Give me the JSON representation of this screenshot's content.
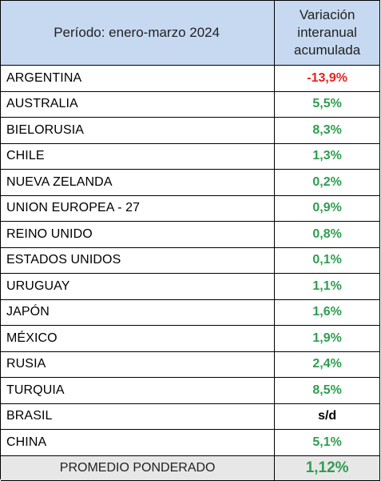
{
  "header": {
    "period_label": "Período: enero-marzo 2024",
    "variation_line1": "Variación",
    "variation_line2": "interanual",
    "variation_line3": "acumulada"
  },
  "rows": [
    {
      "country": "ARGENTINA",
      "value": "-13,9%",
      "status": "negative",
      "color": "#e8231c"
    },
    {
      "country": "AUSTRALIA",
      "value": "5,5%",
      "status": "positive",
      "color": "#2e9e4f"
    },
    {
      "country": "BIELORUSIA",
      "value": "8,3%",
      "status": "positive",
      "color": "#2e9e4f"
    },
    {
      "country": "CHILE",
      "value": "1,3%",
      "status": "positive",
      "color": "#2e9e4f"
    },
    {
      "country": "NUEVA ZELANDA",
      "value": "0,2%",
      "status": "positive",
      "color": "#2e9e4f"
    },
    {
      "country": "UNION EUROPEA - 27",
      "value": "0,9%",
      "status": "positive",
      "color": "#2e9e4f"
    },
    {
      "country": "REINO UNIDO",
      "value": "0,8%",
      "status": "positive",
      "color": "#2e9e4f"
    },
    {
      "country": "ESTADOS UNIDOS",
      "value": "0,1%",
      "status": "positive",
      "color": "#2e9e4f"
    },
    {
      "country": "URUGUAY",
      "value": "1,1%",
      "status": "positive",
      "color": "#2e9e4f"
    },
    {
      "country": "JAPÓN",
      "value": "1,6%",
      "status": "positive",
      "color": "#2e9e4f"
    },
    {
      "country": "MÉXICO",
      "value": "1,9%",
      "status": "positive",
      "color": "#2e9e4f"
    },
    {
      "country": "RUSIA",
      "value": "2,4%",
      "status": "positive",
      "color": "#2e9e4f"
    },
    {
      "country": "TURQUIA",
      "value": "8,5%",
      "status": "positive",
      "color": "#2e9e4f"
    },
    {
      "country": "BRASIL",
      "value": "s/d",
      "status": "no-data",
      "color": "#000000"
    },
    {
      "country": "CHINA",
      "value": "5,1%",
      "status": "positive",
      "color": "#2e9e4f"
    }
  ],
  "footer": {
    "label": "PROMEDIO PONDERADO",
    "value": "1,12%",
    "color": "#2e9e4f"
  },
  "colors": {
    "header_bg": "#c6d9f1",
    "footer_bg": "#e7e7e7",
    "positive": "#2e9e4f",
    "negative": "#e8231c"
  }
}
